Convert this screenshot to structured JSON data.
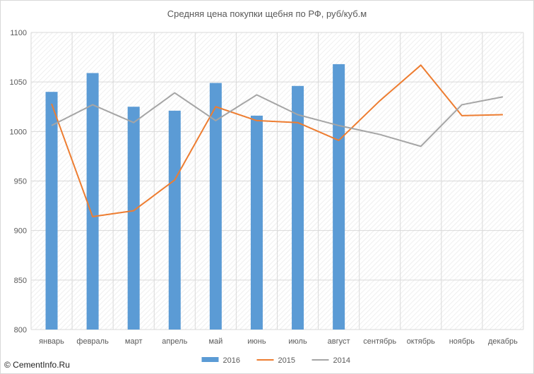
{
  "chart_data": {
    "type": "bar+line",
    "title": "Средняя цена покупки щебня по РФ, руб/куб.м",
    "categories": [
      "январь",
      "февраль",
      "март",
      "апрель",
      "май",
      "июнь",
      "июль",
      "август",
      "сентябрь",
      "октябрь",
      "ноябрь",
      "декабрь"
    ],
    "ylim": [
      800,
      1100
    ],
    "yticks": [
      800,
      850,
      900,
      950,
      1000,
      1050,
      1100
    ],
    "grid": true,
    "legend": "bottom",
    "series": [
      {
        "name": "2016",
        "type": "bar",
        "color": "#5b9bd5",
        "values": [
          1040,
          1059,
          1025,
          1021,
          1049,
          1016,
          1046,
          1068,
          null,
          null,
          null,
          null
        ]
      },
      {
        "name": "2015",
        "type": "line",
        "color": "#ed7d31",
        "values": [
          1028,
          914,
          920,
          951,
          1025,
          1011,
          1009,
          991,
          1031,
          1067,
          1016,
          1017
        ]
      },
      {
        "name": "2014",
        "type": "line",
        "color": "#a5a5a5",
        "values": [
          1006,
          1027,
          1009,
          1039,
          1011,
          1037,
          1017,
          1006,
          997,
          985,
          1027,
          1035
        ]
      }
    ]
  },
  "watermark": "© CementInfo.Ru"
}
